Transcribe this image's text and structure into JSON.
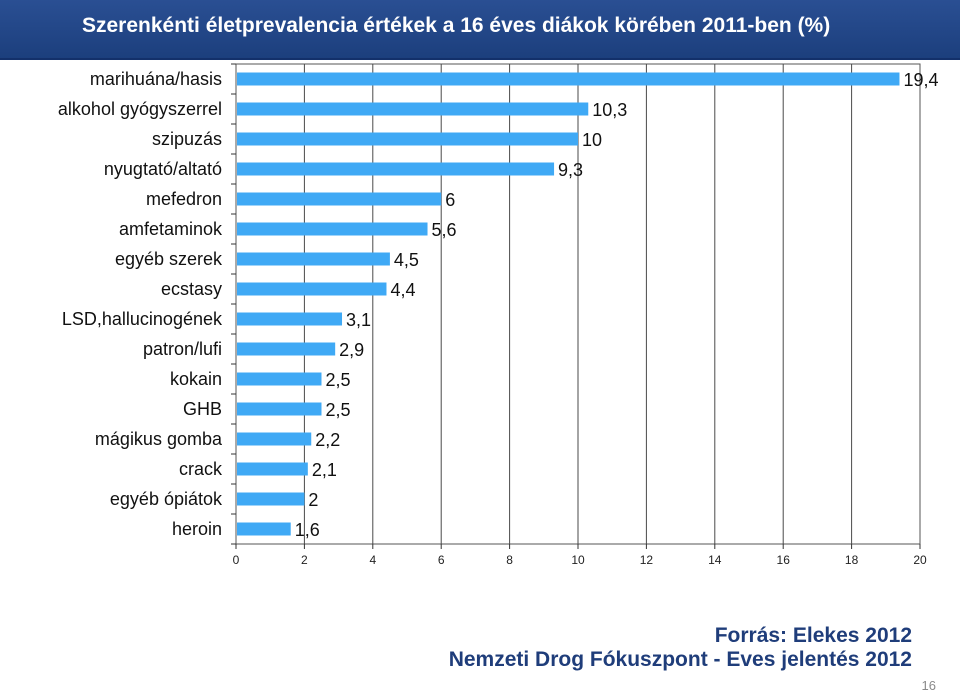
{
  "title": "Szerenkénti életprevalencia értékek a 16 éves diákok körében 2011-ben (%)",
  "colors": {
    "bar": "#3fa9f5",
    "title_bg": "#1f4488",
    "source_text": "#1f3d7a"
  },
  "chart_data": {
    "type": "bar",
    "orientation": "horizontal",
    "title": "",
    "xlabel": "",
    "ylabel": "",
    "categories": [
      "marihuána/hasis",
      "alkohol gyógyszerrel",
      "szipuzás",
      "nyugtató/altató",
      "mefedron",
      "amfetaminok",
      "egyéb szerek",
      "ecstasy",
      "LSD,hallucinogének",
      "patron/lufi",
      "kokain",
      "GHB",
      "mágikus gomba",
      "crack",
      "egyéb ópiátok",
      "heroin"
    ],
    "values": [
      19.4,
      10.3,
      10,
      9.3,
      6,
      5.6,
      4.5,
      4.4,
      3.1,
      2.9,
      2.5,
      2.5,
      2.2,
      2.1,
      2,
      1.6
    ],
    "data_labels": [
      "19,4",
      "10,3",
      "10",
      "9,3",
      "6",
      "5,6",
      "4,5",
      "4,4",
      "3,1",
      "2,9",
      "2,5",
      "2,5",
      "2,2",
      "2,1",
      "2",
      "1,6"
    ],
    "xlim": [
      0,
      20
    ],
    "ticks": [
      0,
      2,
      4,
      6,
      8,
      10,
      12,
      14,
      16,
      18,
      20
    ],
    "tick_labels": [
      "0",
      "2",
      "4",
      "6",
      "8",
      "10",
      "12",
      "14",
      "16",
      "18",
      "20"
    ],
    "grid": "vertical"
  },
  "source": {
    "line1": "Forrás: Elekes 2012",
    "line2": "Nemzeti Drog Fókuszpont - Eves jelentés 2012"
  },
  "page_number": "16"
}
